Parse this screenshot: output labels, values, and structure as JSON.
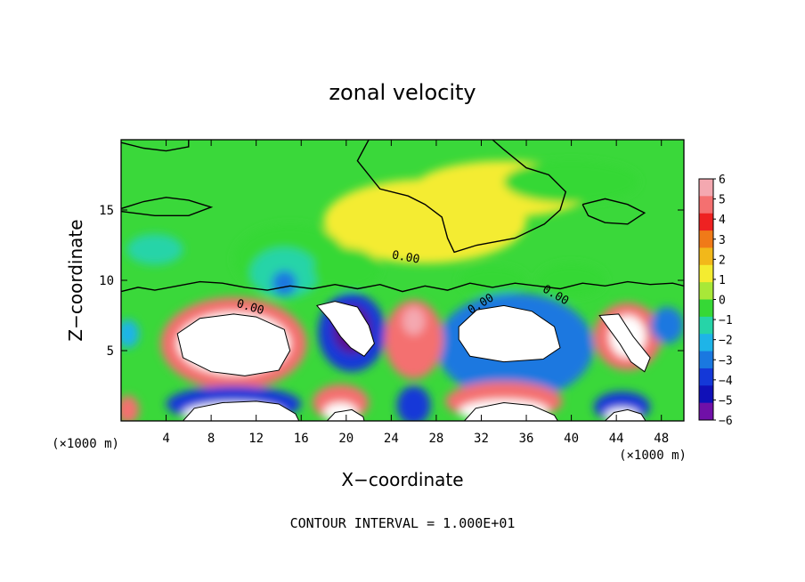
{
  "chart_data": {
    "type": "heatmap",
    "title": "zonal velocity",
    "xlabel": "X−coordinate",
    "ylabel": "Z−coordinate",
    "x_unit": "(×1000 m)",
    "y_unit": "(×1000 m)",
    "xlim": [
      0,
      50
    ],
    "ylim": [
      0,
      20
    ],
    "x_ticks": [
      4,
      8,
      12,
      16,
      20,
      24,
      28,
      32,
      36,
      40,
      44,
      48
    ],
    "y_ticks": [
      5,
      10,
      15
    ],
    "colorbar": {
      "min": -6,
      "max": 6,
      "labels": [
        "6",
        "5",
        "4",
        "3",
        "2",
        "1",
        "0",
        "−1",
        "−2",
        "−3",
        "−4",
        "−5",
        "−6"
      ],
      "colors": [
        "#f4a8b0",
        "#f47070",
        "#ee2222",
        "#f07a18",
        "#f2b81a",
        "#f4ec30",
        "#a8e838",
        "#36d836",
        "#26d4a8",
        "#1eb4e8",
        "#1a78e0",
        "#1438d8",
        "#1010b8",
        "#7010a8"
      ]
    },
    "contour_labels": [
      "0.00",
      "0.00",
      "0.00",
      "0.00"
    ],
    "footnote": "CONTOUR INTERVAL = 1.000E+01",
    "regions": [
      {
        "kind": "blob",
        "value": 1.0,
        "x": 27,
        "z": 14.2,
        "rx": 9,
        "rz": 3
      },
      {
        "kind": "blob",
        "value": 0.5,
        "x": 34,
        "z": 16.5,
        "rx": 8,
        "rz": 2
      },
      {
        "kind": "blob",
        "value": -1.5,
        "x": 40,
        "z": 17,
        "rx": 6,
        "rz": 1.5
      },
      {
        "kind": "blob",
        "value": -1.2,
        "x": 15,
        "z": 11.5,
        "rx": 5,
        "rz": 2.5
      },
      {
        "kind": "blob",
        "value": -2.5,
        "x": 14.5,
        "z": 10.5,
        "rx": 3,
        "rz": 1.8
      },
      {
        "kind": "blob",
        "value": -2.6,
        "x": 3,
        "z": 12.2,
        "rx": 2.5,
        "rz": 1.1
      },
      {
        "kind": "blob",
        "value": -4.2,
        "x": 14.5,
        "z": 9.8,
        "rx": 1.1,
        "rz": 0.9
      },
      {
        "kind": "blob",
        "value": -1.5,
        "x": 20,
        "z": 10.8,
        "rx": 3,
        "rz": 1.5
      },
      {
        "kind": "blob",
        "value": -1.5,
        "x": 33,
        "z": 10,
        "rx": 3,
        "rz": 1
      },
      {
        "kind": "blob",
        "value": -1.6,
        "x": 40,
        "z": 10,
        "rx": 3,
        "rz": 1.2
      },
      {
        "kind": "blob",
        "value": 5.0,
        "x": 10,
        "z": 5.5,
        "rx": 6.5,
        "rz": 3.3
      },
      {
        "kind": "blob",
        "value": 6.5,
        "x": 10,
        "z": 5.5,
        "rx": 5,
        "rz": 2.2
      },
      {
        "kind": "blob",
        "value": 5.0,
        "x": 34.5,
        "z": 5.8,
        "rx": 6,
        "rz": 3.1
      },
      {
        "kind": "blob",
        "value": 6.5,
        "x": 34.5,
        "z": 5.8,
        "rx": 4.6,
        "rz": 2.1
      },
      {
        "kind": "blob",
        "value": -4.8,
        "x": 35,
        "z": 5.3,
        "rx": 7,
        "rz": 3.8
      },
      {
        "kind": "blob",
        "value": -5.0,
        "x": 20.5,
        "z": 6.3,
        "rx": 3,
        "rz": 2.8
      },
      {
        "kind": "blob",
        "value": -6.5,
        "x": 20.5,
        "z": 6.5,
        "rx": 1.7,
        "rz": 1.7
      },
      {
        "kind": "blob",
        "value": 4.5,
        "x": 26,
        "z": 5.8,
        "rx": 2.6,
        "rz": 2.8
      },
      {
        "kind": "blob",
        "value": 5.5,
        "x": 26,
        "z": 7.1,
        "rx": 1,
        "rz": 1
      },
      {
        "kind": "blob",
        "value": 4.5,
        "x": 45,
        "z": 6,
        "rx": 3,
        "rz": 2.4
      },
      {
        "kind": "blob",
        "value": 6.5,
        "x": 45,
        "z": 6,
        "rx": 1.6,
        "rz": 1.5
      },
      {
        "kind": "blob",
        "value": -4.5,
        "x": 48.5,
        "z": 6.8,
        "rx": 1.5,
        "rz": 1.3
      },
      {
        "kind": "blob",
        "value": -3.5,
        "x": 0.6,
        "z": 6.2,
        "rx": 1,
        "rz": 1
      },
      {
        "kind": "blob",
        "value": -5.0,
        "x": 10,
        "z": 1.2,
        "rx": 6,
        "rz": 1.3
      },
      {
        "kind": "blob",
        "value": 6.5,
        "x": 10,
        "z": 0.5,
        "rx": 4.5,
        "rz": 0.8
      },
      {
        "kind": "blob",
        "value": 5.0,
        "x": 19.5,
        "z": 1.3,
        "rx": 2.5,
        "rz": 1.3
      },
      {
        "kind": "blob",
        "value": 6.5,
        "x": 19.5,
        "z": 0.6,
        "rx": 1.5,
        "rz": 0.7
      },
      {
        "kind": "blob",
        "value": -5.5,
        "x": 26,
        "z": 1.1,
        "rx": 1.5,
        "rz": 1.4
      },
      {
        "kind": "blob",
        "value": 5.0,
        "x": 34,
        "z": 1.4,
        "rx": 5.2,
        "rz": 1.4
      },
      {
        "kind": "blob",
        "value": 6.5,
        "x": 34,
        "z": 0.7,
        "rx": 4,
        "rz": 0.8
      },
      {
        "kind": "blob",
        "value": -5.0,
        "x": 44.5,
        "z": 1,
        "rx": 2.5,
        "rz": 1.1
      },
      {
        "kind": "blob",
        "value": 6.5,
        "x": 44.5,
        "z": 0.4,
        "rx": 1.5,
        "rz": 0.5
      },
      {
        "kind": "blob",
        "value": 5.0,
        "x": 0.6,
        "z": 0.8,
        "rx": 1,
        "rz": 1
      }
    ],
    "zero_contours": [
      {
        "points": [
          [
            0,
            9.2
          ],
          [
            1.5,
            9.5
          ],
          [
            3,
            9.3
          ],
          [
            5,
            9.6
          ],
          [
            7,
            9.9
          ],
          [
            9,
            9.8
          ],
          [
            11,
            9.5
          ],
          [
            13,
            9.3
          ],
          [
            15,
            9.6
          ],
          [
            17,
            9.4
          ],
          [
            19,
            9.7
          ],
          [
            21,
            9.4
          ],
          [
            23,
            9.7
          ],
          [
            25,
            9.2
          ],
          [
            27,
            9.6
          ],
          [
            29,
            9.3
          ],
          [
            31,
            9.8
          ],
          [
            33,
            9.5
          ],
          [
            35,
            9.8
          ],
          [
            37,
            9.6
          ],
          [
            39,
            9.4
          ],
          [
            41,
            9.8
          ],
          [
            43,
            9.6
          ],
          [
            45,
            9.9
          ],
          [
            47,
            9.7
          ],
          [
            49,
            9.8
          ],
          [
            50,
            9.6
          ]
        ]
      },
      {
        "points": [
          [
            22,
            20
          ],
          [
            21,
            18.5
          ],
          [
            23,
            16.5
          ],
          [
            25.5,
            16
          ],
          [
            27,
            15.4
          ],
          [
            28.5,
            14.5
          ],
          [
            29,
            13
          ],
          [
            29.6,
            12
          ],
          [
            31.6,
            12.5
          ],
          [
            35,
            13
          ],
          [
            37.6,
            14
          ],
          [
            39,
            15
          ],
          [
            39.5,
            16.3
          ],
          [
            38,
            17.5
          ],
          [
            36,
            18
          ],
          [
            34,
            19.3
          ],
          [
            33,
            20
          ]
        ]
      },
      {
        "points": [
          [
            0,
            15.1
          ],
          [
            2,
            15.6
          ],
          [
            4,
            15.9
          ],
          [
            6,
            15.7
          ],
          [
            8,
            15.2
          ],
          [
            6,
            14.6
          ],
          [
            3,
            14.6
          ],
          [
            0,
            14.9
          ]
        ]
      },
      {
        "points": [
          [
            41,
            15.4
          ],
          [
            43,
            15.8
          ],
          [
            45,
            15.4
          ],
          [
            46.5,
            14.8
          ],
          [
            45,
            14
          ],
          [
            43,
            14.1
          ],
          [
            41.5,
            14.6
          ],
          [
            41,
            15.4
          ]
        ]
      },
      {
        "points": [
          [
            0,
            19.8
          ],
          [
            2,
            19.4
          ],
          [
            4,
            19.2
          ],
          [
            6,
            19.5
          ],
          [
            6,
            20
          ]
        ]
      }
    ],
    "white_regions": [
      {
        "points": [
          [
            5,
            6.2
          ],
          [
            7,
            7.3
          ],
          [
            10,
            7.6
          ],
          [
            12,
            7.4
          ],
          [
            14.5,
            6.5
          ],
          [
            15,
            5
          ],
          [
            14,
            3.6
          ],
          [
            11,
            3.2
          ],
          [
            8,
            3.5
          ],
          [
            5.5,
            4.5
          ],
          [
            5,
            6.2
          ]
        ]
      },
      {
        "points": [
          [
            17.4,
            8.2
          ],
          [
            19,
            8.5
          ],
          [
            21,
            8.1
          ],
          [
            22,
            6.8
          ],
          [
            22.5,
            5.5
          ],
          [
            21.6,
            4.6
          ],
          [
            20.4,
            5.2
          ],
          [
            19.5,
            6
          ],
          [
            18.5,
            7.2
          ],
          [
            17.4,
            8.2
          ]
        ]
      },
      {
        "points": [
          [
            30,
            6.7
          ],
          [
            31.6,
            7.9
          ],
          [
            34,
            8.2
          ],
          [
            36.5,
            7.8
          ],
          [
            38.5,
            6.7
          ],
          [
            39,
            5.2
          ],
          [
            37.5,
            4.4
          ],
          [
            34,
            4.2
          ],
          [
            31,
            4.6
          ],
          [
            30,
            5.8
          ],
          [
            30,
            6.7
          ]
        ]
      },
      {
        "points": [
          [
            42.5,
            7.5
          ],
          [
            44.2,
            7.6
          ],
          [
            45.5,
            6
          ],
          [
            47,
            4.5
          ],
          [
            46.5,
            3.5
          ],
          [
            45.3,
            4.2
          ],
          [
            44.3,
            5.5
          ],
          [
            43.3,
            6.6
          ],
          [
            42.5,
            7.5
          ]
        ]
      },
      {
        "points": [
          [
            5.5,
            0
          ],
          [
            6.5,
            0.9
          ],
          [
            9,
            1.3
          ],
          [
            12,
            1.4
          ],
          [
            14,
            1.2
          ],
          [
            15.5,
            0.5
          ],
          [
            15.8,
            0
          ]
        ]
      },
      {
        "points": [
          [
            30.5,
            0
          ],
          [
            31.5,
            0.9
          ],
          [
            34,
            1.3
          ],
          [
            36.5,
            1.1
          ],
          [
            38.5,
            0.4
          ],
          [
            38.8,
            0
          ]
        ]
      },
      {
        "points": [
          [
            43,
            0
          ],
          [
            43.8,
            0.6
          ],
          [
            45,
            0.8
          ],
          [
            46.2,
            0.5
          ],
          [
            46.6,
            0
          ]
        ]
      },
      {
        "points": [
          [
            18.3,
            0
          ],
          [
            19,
            0.6
          ],
          [
            20.5,
            0.8
          ],
          [
            21.5,
            0.3
          ],
          [
            21.6,
            0
          ]
        ]
      }
    ]
  }
}
